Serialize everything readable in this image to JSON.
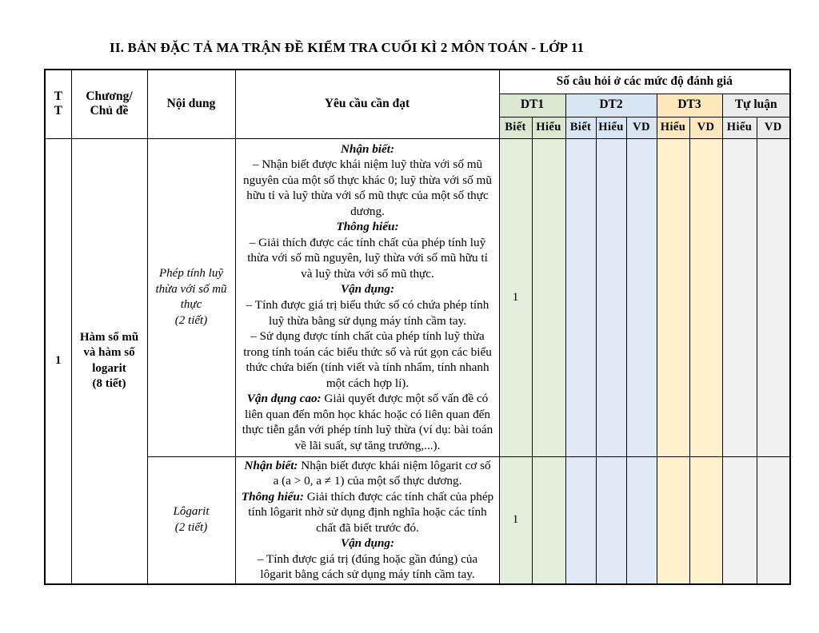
{
  "title": "II. BẢN ĐẶC TẢ MA TRẬN ĐỀ KIỂM TRA CUỐI KÌ 2 MÔN TOÁN - LỚP 11",
  "colors": {
    "green_header": "#dae7d1",
    "green_cell": "#e3eedb",
    "blue_header": "#d8e5f2",
    "blue_cell": "#dfeaf6",
    "yellow_header": "#fce8bb",
    "yellow_cell": "#fdf1cb",
    "gray_header": "#ebebeb",
    "gray_cell": "#f0f0f0",
    "border": "#000000"
  },
  "table": {
    "header": {
      "tt": "T\nT",
      "chapter": "Chương/\nChủ đề",
      "content": "Nội dung",
      "requirement": "Yêu cầu cần đạt",
      "questions_title": "Số câu hỏi ở các mức độ đánh giá",
      "groups": [
        {
          "label": "DT1",
          "cols": [
            "Biết",
            "Hiểu"
          ]
        },
        {
          "label": "DT2",
          "cols": [
            "Biết",
            "Hiểu",
            "VD"
          ]
        },
        {
          "label": "DT3",
          "cols": [
            "Hiểu",
            "VD"
          ]
        },
        {
          "label": "Tự luận",
          "cols": [
            "Hiểu",
            "VD"
          ]
        }
      ]
    },
    "chapter_rows": [
      {
        "tt": "1",
        "chapter": "Hàm số mũ và hàm số logarit",
        "chapter_duration": "(8 tiết)",
        "topics": [
          {
            "content": "Phép tính luỹ thừa với số mũ thực",
            "duration": "(2 tiết)",
            "requirements": [
              {
                "lead": "Nhận biết:",
                "text": ""
              },
              {
                "lead": "",
                "text": "– Nhận biết được khái niệm luỹ thừa với số mũ nguyên của một số thực khác 0; luỹ thừa với số mũ hữu tỉ và luỹ thừa với số mũ thực của một số thực dương."
              },
              {
                "lead": "Thông hiểu:",
                "text": ""
              },
              {
                "lead": "",
                "text": "– Giải thích được các tính chất của phép tính luỹ thừa với số mũ nguyên, luỹ thừa với số mũ hữu tỉ và luỹ thừa với số mũ thực."
              },
              {
                "lead": "Vận dụng:",
                "text": ""
              },
              {
                "lead": "",
                "text": "– Tính được giá trị biểu thức số có chứa phép tính luỹ thừa bằng sử dụng máy tính cầm tay."
              },
              {
                "lead": "",
                "text": "– Sử dụng được tính chất của phép tính luỹ thừa trong tính toán các biểu thức số và rút gọn các biểu thức chứa biến (tính viết và tính nhẩm, tính nhanh một cách hợp lí)."
              },
              {
                "lead": "Vận dụng cao:",
                "text": "Giải quyết được một số vấn đề có liên quan đến môn học khác hoặc có liên quan đến thực tiễn gắn với phép tính luỹ thừa (ví dụ: bài toán về lãi suất, sự tăng trưởng,...)."
              }
            ],
            "values": [
              "1",
              "",
              "",
              "",
              "",
              "",
              "",
              "",
              ""
            ]
          },
          {
            "content": "Lôgarit",
            "duration": "(2 tiết)",
            "requirements": [
              {
                "lead": "Nhận biết:",
                "text": "Nhận biết được khái niệm lôgarit cơ số a (a > 0, a ≠ 1) của một số thực dương."
              },
              {
                "lead": "Thông hiểu:",
                "text": "Giải thích được các tính chất của phép tính lôgarit nhờ sử dụng định nghĩa hoặc các tính chất đã biết trước đó."
              },
              {
                "lead": "Vận dụng:",
                "text": ""
              },
              {
                "lead": "",
                "text": "– Tính được giá trị (đúng hoặc gần đúng) của lôgarit bằng cách sử dụng máy tính cầm tay."
              }
            ],
            "values": [
              "1",
              "",
              "",
              "",
              "",
              "",
              "",
              "",
              ""
            ]
          }
        ]
      }
    ]
  }
}
